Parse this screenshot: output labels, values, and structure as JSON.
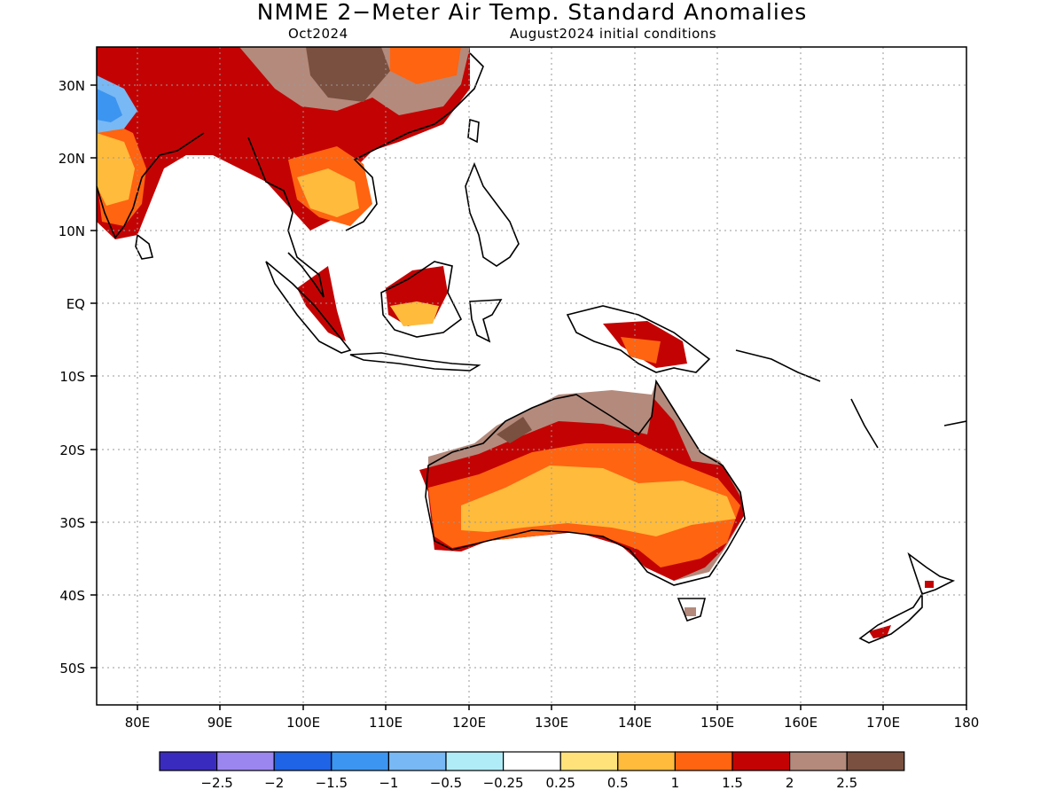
{
  "title": "NMME 2−Meter Air Temp. Standard Anomalies",
  "target_month": "Oct2024",
  "init_conditions": "August2024 initial conditions",
  "lat_labels": [
    "30N",
    "20N",
    "10N",
    "EQ",
    "10S",
    "20S",
    "30S",
    "40S",
    "50S"
  ],
  "lon_labels": [
    "80E",
    "90E",
    "100E",
    "110E",
    "120E",
    "130E",
    "140E",
    "150E",
    "160E",
    "170E",
    "180"
  ],
  "legend": {
    "colors": [
      "#3a2bbf",
      "#9b86f0",
      "#1f63e6",
      "#3c95f0",
      "#78b8f4",
      "#b0ecf8",
      "#ffffff",
      "#ffe27a",
      "#ffbb3c",
      "#ff6410",
      "#c30303",
      "#b48a7c",
      "#7a5040"
    ],
    "labels": [
      "−2.5",
      "−2",
      "−1.5",
      "−1",
      "−0.5",
      "−0.25",
      "0.25",
      "0.5",
      "1",
      "1.5",
      "2",
      "2.5"
    ]
  }
}
